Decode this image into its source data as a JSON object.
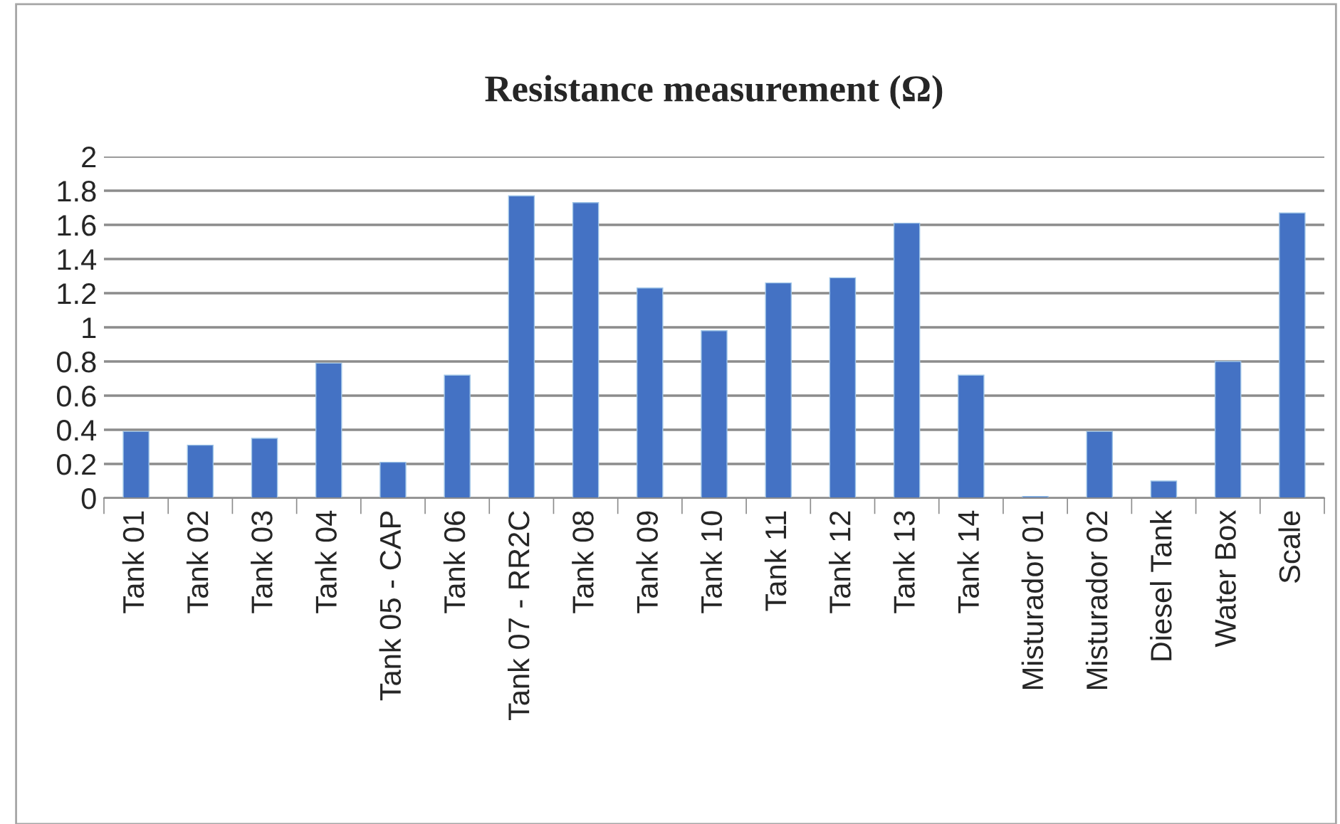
{
  "chart_data": {
    "type": "bar",
    "title": "Resistance measurement (Ω)",
    "categories": [
      "Tank 01",
      "Tank 02",
      "Tank 03",
      "Tank 04",
      "Tank 05 - CAP",
      "Tank 06",
      "Tank 07 - RR2C",
      "Tank 08",
      "Tank 09",
      "Tank 10",
      "Tank 11",
      "Tank 12",
      "Tank 13",
      "Tank 14",
      "Misturador 01",
      "Misturador 02",
      "Diesel Tank",
      "Water Box",
      "Scale"
    ],
    "values": [
      0.39,
      0.31,
      0.35,
      0.79,
      0.21,
      0.72,
      1.77,
      1.73,
      1.23,
      0.98,
      1.26,
      1.29,
      1.61,
      0.72,
      0.01,
      0.39,
      0.1,
      0.8,
      1.67
    ],
    "color": "#4472c4",
    "ylim": [
      0,
      2
    ],
    "yticks": [
      0,
      {
        "value": 0.2,
        "label": "0.2"
      },
      {
        "value": 0.4,
        "label": "0.4"
      },
      {
        "value": 0.6,
        "label": "0.6"
      },
      {
        "value": 0.8,
        "label": "0.8"
      },
      1,
      {
        "value": 1.2,
        "label": "1.2"
      },
      {
        "value": 1.4,
        "label": "1.4"
      },
      {
        "value": 1.6,
        "label": "1.6"
      },
      {
        "value": 1.8,
        "label": "1.8"
      },
      2
    ],
    "grid": "y"
  }
}
